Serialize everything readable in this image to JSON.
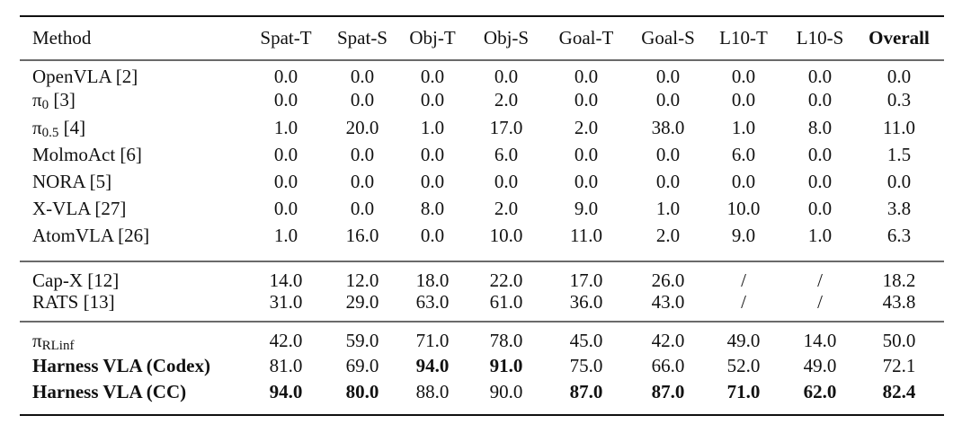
{
  "table": {
    "header": [
      "Method",
      "Spat-T",
      "Spat-S",
      "Obj-T",
      "Obj-S",
      "Goal-T",
      "Goal-S",
      "L10-T",
      "L10-S",
      "Overall"
    ],
    "header_bold": [
      9
    ],
    "groups": [
      [
        {
          "method": {
            "text": "OpenVLA [2]"
          },
          "cells": [
            "0.0",
            "0.0",
            "0.0",
            "0.0",
            "0.0",
            "0.0",
            "0.0",
            "0.0",
            "0.0"
          ],
          "bold": []
        },
        {
          "method": {
            "text": "π",
            "sub": "0",
            "after": " [3]"
          },
          "cells": [
            "0.0",
            "0.0",
            "0.0",
            "2.0",
            "0.0",
            "0.0",
            "0.0",
            "0.0",
            "0.3"
          ],
          "bold": []
        },
        {
          "method": {
            "text": "π",
            "sub": "0.5",
            "after": " [4]"
          },
          "cells": [
            "1.0",
            "20.0",
            "1.0",
            "17.0",
            "2.0",
            "38.0",
            "1.0",
            "8.0",
            "11.0"
          ],
          "bold": []
        },
        {
          "method": {
            "text": "MolmoAct [6]"
          },
          "cells": [
            "0.0",
            "0.0",
            "0.0",
            "6.0",
            "0.0",
            "0.0",
            "6.0",
            "0.0",
            "1.5"
          ],
          "bold": []
        },
        {
          "method": {
            "text": "NORA [5]"
          },
          "cells": [
            "0.0",
            "0.0",
            "0.0",
            "0.0",
            "0.0",
            "0.0",
            "0.0",
            "0.0",
            "0.0"
          ],
          "bold": []
        },
        {
          "method": {
            "text": "X-VLA [27]"
          },
          "cells": [
            "0.0",
            "0.0",
            "8.0",
            "2.0",
            "9.0",
            "1.0",
            "10.0",
            "0.0",
            "3.8"
          ],
          "bold": []
        },
        {
          "method": {
            "text": "AtomVLA [26]"
          },
          "cells": [
            "1.0",
            "16.0",
            "0.0",
            "10.0",
            "11.0",
            "2.0",
            "9.0",
            "1.0",
            "6.3"
          ],
          "bold": []
        }
      ],
      [
        {
          "method": {
            "text": "Cap-X [12]"
          },
          "cells": [
            "14.0",
            "12.0",
            "18.0",
            "22.0",
            "17.0",
            "26.0",
            "/",
            "/",
            "18.2"
          ],
          "bold": []
        },
        {
          "method": {
            "text": "RATS [13]"
          },
          "cells": [
            "31.0",
            "29.0",
            "63.0",
            "61.0",
            "36.0",
            "43.0",
            "/",
            "/",
            "43.8"
          ],
          "bold": []
        }
      ],
      [
        {
          "method": {
            "text": "π",
            "sub": "RLinf"
          },
          "cells": [
            "42.0",
            "59.0",
            "71.0",
            "78.0",
            "45.0",
            "42.0",
            "49.0",
            "14.0",
            "50.0"
          ],
          "bold": []
        },
        {
          "method": {
            "text": "Harness VLA (Codex)",
            "bold": true
          },
          "cells": [
            "81.0",
            "69.0",
            "94.0",
            "91.0",
            "75.0",
            "66.0",
            "52.0",
            "49.0",
            "72.1"
          ],
          "bold": [
            2,
            3
          ]
        },
        {
          "method": {
            "text": "Harness VLA (CC)",
            "bold": true
          },
          "cells": [
            "94.0",
            "80.0",
            "88.0",
            "90.0",
            "87.0",
            "87.0",
            "71.0",
            "62.0",
            "82.4"
          ],
          "bold": [
            0,
            1,
            4,
            5,
            6,
            7,
            8
          ]
        }
      ]
    ]
  }
}
